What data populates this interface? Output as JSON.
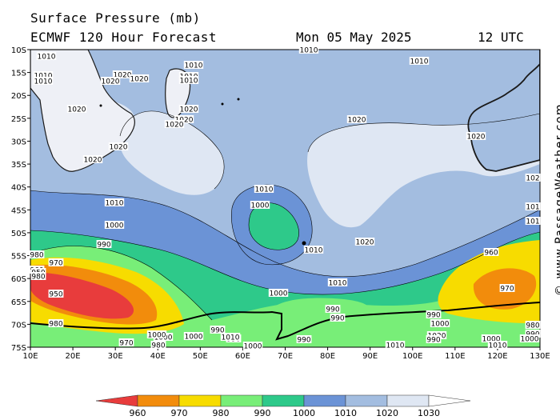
{
  "header": {
    "title_line1": "Surface Pressure (mb)",
    "title_line2": "ECMWF 120 Hour Forecast",
    "date": "Mon 05 May 2025",
    "time": "12 UTC"
  },
  "watermark": "© www.PassageWeather.com",
  "axes": {
    "lat_labels": [
      "10S",
      "15S",
      "20S",
      "25S",
      "30S",
      "35S",
      "40S",
      "45S",
      "50S",
      "55S",
      "60S",
      "65S",
      "70S",
      "75S"
    ],
    "lon_labels": [
      "10E",
      "20E",
      "30E",
      "40E",
      "50E",
      "60E",
      "70E",
      "80E",
      "90E",
      "100E",
      "110E",
      "120E",
      "130E"
    ]
  },
  "colorbar": {
    "levels": [
      "960",
      "970",
      "980",
      "990",
      "1000",
      "1010",
      "1020",
      "1030"
    ],
    "colors": [
      "#e83c3c",
      "#f28c0c",
      "#f7dc00",
      "#78ee78",
      "#2ec98a",
      "#6b93d6",
      "#a3bde0",
      "#dfe7f3",
      "#ffffff"
    ]
  },
  "isobar_labels": [
    {
      "text": "1010"
    },
    {
      "text": "1010"
    },
    {
      "text": "1010"
    },
    {
      "text": "1020"
    },
    {
      "text": "1020"
    },
    {
      "text": "1020"
    },
    {
      "text": "1010"
    },
    {
      "text": "1010"
    },
    {
      "text": "1020"
    },
    {
      "text": "1020"
    },
    {
      "text": "1020"
    },
    {
      "text": "1020"
    },
    {
      "text": "1020"
    },
    {
      "text": "1010"
    },
    {
      "text": "1010"
    },
    {
      "text": "1020"
    },
    {
      "text": "1020"
    },
    {
      "text": "1020"
    },
    {
      "text": "1010"
    },
    {
      "text": "1010"
    },
    {
      "text": "1000"
    },
    {
      "text": "1000"
    },
    {
      "text": "1010"
    },
    {
      "text": "1020"
    },
    {
      "text": "990"
    },
    {
      "text": "980"
    },
    {
      "text": "970"
    },
    {
      "text": "960"
    },
    {
      "text": "950"
    },
    {
      "text": "950"
    },
    {
      "text": "1000"
    },
    {
      "text": "1010"
    },
    {
      "text": "990"
    },
    {
      "text": "960"
    },
    {
      "text": "970"
    },
    {
      "text": "980"
    },
    {
      "text": "980"
    },
    {
      "text": "970"
    },
    {
      "text": "980"
    },
    {
      "text": "990"
    },
    {
      "text": "990"
    },
    {
      "text": "1000"
    },
    {
      "text": "1000"
    },
    {
      "text": "1010"
    },
    {
      "text": "990"
    },
    {
      "text": "1000"
    },
    {
      "text": "990"
    },
    {
      "text": "1000"
    },
    {
      "text": "1020"
    },
    {
      "text": "1010"
    },
    {
      "text": "1010"
    },
    {
      "text": "980"
    },
    {
      "text": "990"
    },
    {
      "text": "1000"
    },
    {
      "text": "990"
    },
    {
      "text": "990"
    },
    {
      "text": "1000"
    },
    {
      "text": "1000"
    },
    {
      "text": "1010"
    },
    {
      "text": "102"
    },
    {
      "text": "101"
    },
    {
      "text": "101"
    }
  ]
}
